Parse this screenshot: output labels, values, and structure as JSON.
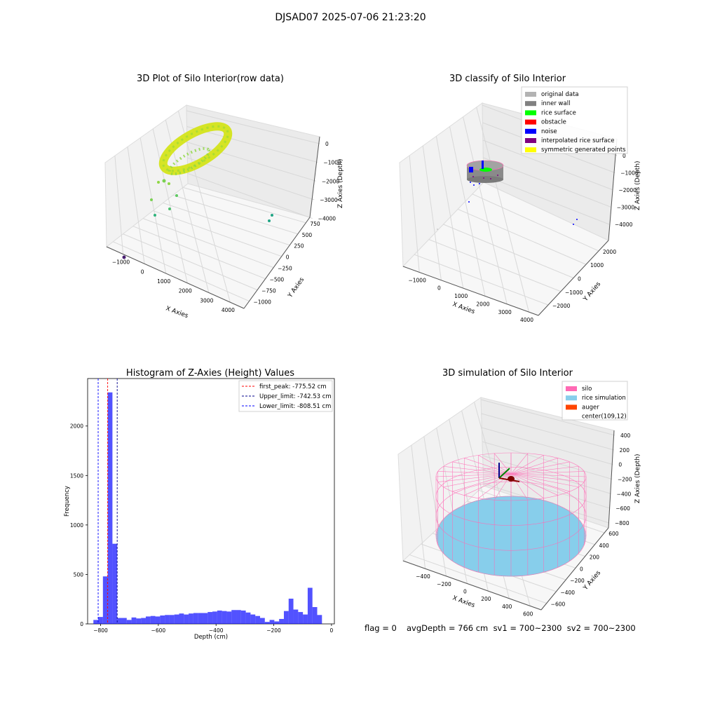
{
  "suptitle": "DJSAD07 2025-07-06 21:23:20",
  "chart_data": [
    {
      "type": "scatter",
      "title": "3D Plot of Silo Interior(row data)",
      "xlabel": "X Axies",
      "ylabel": "Y Axies",
      "zlabel": "Z Axies (Depth)",
      "x_ticks": [
        "−1000",
        "0",
        "1000",
        "2000",
        "3000",
        "4000"
      ],
      "y_ticks": [
        "−1000",
        "−750",
        "−500",
        "−250",
        "0",
        "250",
        "500",
        "750"
      ],
      "z_ticks": [
        "0",
        "−1000",
        "−2000",
        "−3000",
        "−4000"
      ],
      "xlim": [
        -1500,
        4500
      ],
      "ylim": [
        -1000,
        800
      ],
      "zlim": [
        -4500,
        200
      ],
      "grid": true,
      "colormap": "viridis",
      "note_points": "dense ring of points near depth ≈ -770 cm plus a few scattered outliers"
    },
    {
      "type": "scatter",
      "title": "3D classify of Silo Interior",
      "xlabel": "X Axies",
      "ylabel": "Y Axies",
      "zlabel": "Z Axies (Depth)",
      "x_ticks": [
        "−1000",
        "0",
        "1000",
        "2000",
        "3000",
        "4000"
      ],
      "y_ticks": [
        "−2000",
        "−1000",
        "0",
        "1000",
        "2000"
      ],
      "z_ticks": [
        "0",
        "−1000",
        "−2000",
        "−3000",
        "−4000"
      ],
      "legend_position": "top-right",
      "series": [
        {
          "name": "original data",
          "color": "#b3b3b3"
        },
        {
          "name": "inner wall",
          "color": "#808080"
        },
        {
          "name": "rice surface",
          "color": "#00ff00"
        },
        {
          "name": "obstacle",
          "color": "#ff0000"
        },
        {
          "name": "noise",
          "color": "#0000ff"
        },
        {
          "name": "interpolated rice surface",
          "color": "#800080"
        },
        {
          "name": "symmetric generated points",
          "color": "#ffff00"
        }
      ]
    },
    {
      "type": "bar",
      "title": "Histogram of Z-Axies (Height) Values",
      "xlabel": "Depth (cm)",
      "ylabel": "Frequency",
      "xlim": [
        -845,
        10
      ],
      "ylim": [
        0,
        2480
      ],
      "x_ticks": [
        -800,
        -600,
        -400,
        -200,
        0
      ],
      "y_ticks": [
        0,
        500,
        1000,
        1500,
        2000
      ],
      "bar_color": "#0000ff",
      "bin_width": 16.5,
      "bin_starts": [
        -825,
        -808.5,
        -792,
        -775.5,
        -759,
        -742.5,
        -726,
        -709.5,
        -693,
        -676.5,
        -660,
        -643.5,
        -627,
        -610.5,
        -594,
        -577.5,
        -561,
        -544.5,
        -528,
        -511.5,
        -495,
        -478.5,
        -462,
        -445.5,
        -429,
        -412.5,
        -396,
        -379.5,
        -363,
        -346.5,
        -330,
        -313.5,
        -297,
        -280.5,
        -264,
        -247.5,
        -231,
        -214.5,
        -198,
        -181.5,
        -165,
        -148.5,
        -132,
        -115.5,
        -99,
        -82.5,
        -66,
        -49.5,
        -33,
        -16.5
      ],
      "values": [
        40,
        70,
        480,
        2340,
        810,
        60,
        60,
        40,
        65,
        55,
        60,
        75,
        80,
        75,
        85,
        90,
        90,
        95,
        105,
        95,
        105,
        110,
        110,
        110,
        120,
        125,
        135,
        130,
        125,
        140,
        140,
        135,
        115,
        95,
        80,
        60,
        20,
        40,
        25,
        50,
        130,
        255,
        145,
        120,
        95,
        365,
        170,
        90,
        0,
        0
      ],
      "reference_lines": [
        {
          "label": "first_peak: -775.52 cm",
          "value": -775.52,
          "color": "#ff0000"
        },
        {
          "label": "Upper_limit: -742.53 cm",
          "value": -742.53,
          "color": "#00008b"
        },
        {
          "label": "Lower_limit: -808.51 cm",
          "value": -808.51,
          "color": "#0000ff"
        }
      ],
      "legend_position": "top-right"
    },
    {
      "type": "scatter",
      "title": "3D simulation of Silo Interior",
      "xlabel": "X Axies",
      "ylabel": "Y Axies",
      "zlabel": "Z Axies (Depth)",
      "x_ticks": [
        "−400",
        "−200",
        "0",
        "200",
        "400",
        "600"
      ],
      "y_ticks": [
        "−600",
        "−400",
        "−200",
        "0",
        "200",
        "400",
        "600"
      ],
      "z_ticks": [
        "400",
        "200",
        "0",
        "−200",
        "−400",
        "−600",
        "−800"
      ],
      "legend_position": "top-right",
      "series": [
        {
          "name": "silo",
          "color": "#ff69b4"
        },
        {
          "name": "rice simulation",
          "color": "#87ceeb"
        },
        {
          "name": "auger",
          "color": "#ff4500"
        },
        {
          "name": "center(109,12)",
          "color": ""
        }
      ]
    }
  ],
  "footer": {
    "flag": "flag = 0",
    "avg": "avgDepth = 766 cm  sv1 = 700~2300  sv2 = 700~2300"
  }
}
